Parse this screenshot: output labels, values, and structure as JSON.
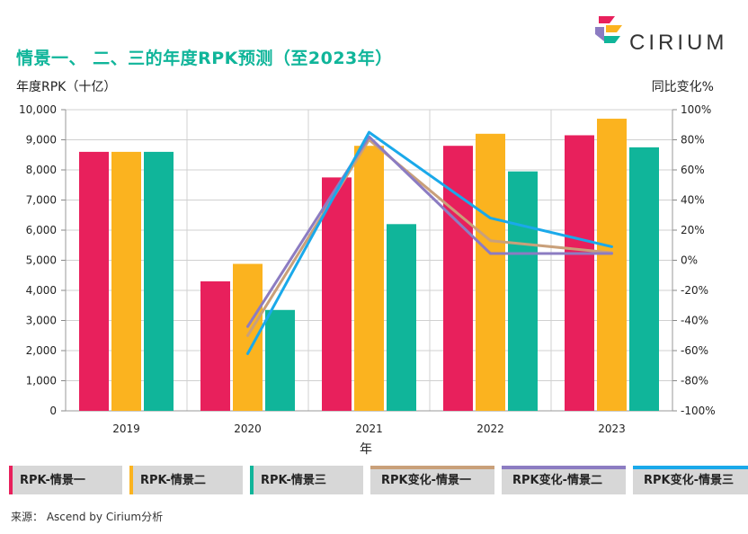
{
  "header": {
    "title": "情景一、 二、三的年度RPK预测（至2023年）",
    "brand": "CIRIUM"
  },
  "chart_data": {
    "type": "bar",
    "categories": [
      "2019",
      "2020",
      "2021",
      "2022",
      "2023"
    ],
    "series": [
      {
        "name": "RPK-情景一",
        "color": "#e8205c",
        "values": [
          8600,
          4300,
          7750,
          8800,
          9150
        ]
      },
      {
        "name": "RPK-情景二",
        "color": "#fbb31f",
        "values": [
          8600,
          4880,
          8800,
          9200,
          9700
        ]
      },
      {
        "name": "RPK-情景三",
        "color": "#10b59a",
        "values": [
          8600,
          3350,
          6200,
          7950,
          8750
        ]
      }
    ],
    "line_series": [
      {
        "name": "RPK变化-情景一",
        "color": "#c9a07a",
        "values": [
          -50,
          80,
          13,
          5
        ]
      },
      {
        "name": "RPK变化-情景二",
        "color": "#8c7cc2",
        "values": [
          -44,
          82,
          4.5,
          4.5
        ]
      },
      {
        "name": "RPK变化-情景三",
        "color": "#1aa9ea",
        "values": [
          -62,
          85,
          28,
          9
        ]
      }
    ],
    "ylabel": "年度RPK（十亿）",
    "y2label": "同比变化%",
    "xlabel": "年",
    "ylim": [
      0,
      10000
    ],
    "y2lim": [
      -100,
      100
    ],
    "yticks": [
      "0",
      "1,000",
      "2,000",
      "3,000",
      "4,000",
      "5,000",
      "6,000",
      "7,000",
      "8,000",
      "9,000",
      "10,000"
    ],
    "y2ticks": [
      "-100%",
      "-80%",
      "-60%",
      "-40%",
      "-20%",
      "0%",
      "20%",
      "40%",
      "60%",
      "80%",
      "100%"
    ],
    "grid": true
  },
  "legend": [
    {
      "label": "RPK-情景一",
      "color": "#e8205c",
      "kind": "bar"
    },
    {
      "label": "RPK-情景二",
      "color": "#fbb31f",
      "kind": "bar"
    },
    {
      "label": "RPK-情景三",
      "color": "#10b59a",
      "kind": "bar"
    },
    {
      "label": "RPK变化-情景一",
      "color": "#c9a07a",
      "kind": "line"
    },
    {
      "label": "RPK变化-情景二",
      "color": "#8c7cc2",
      "kind": "line"
    },
    {
      "label": "RPK变化-情景三",
      "color": "#1aa9ea",
      "kind": "line"
    }
  ],
  "footer": {
    "source": "来源： Ascend by Cirium分析"
  }
}
